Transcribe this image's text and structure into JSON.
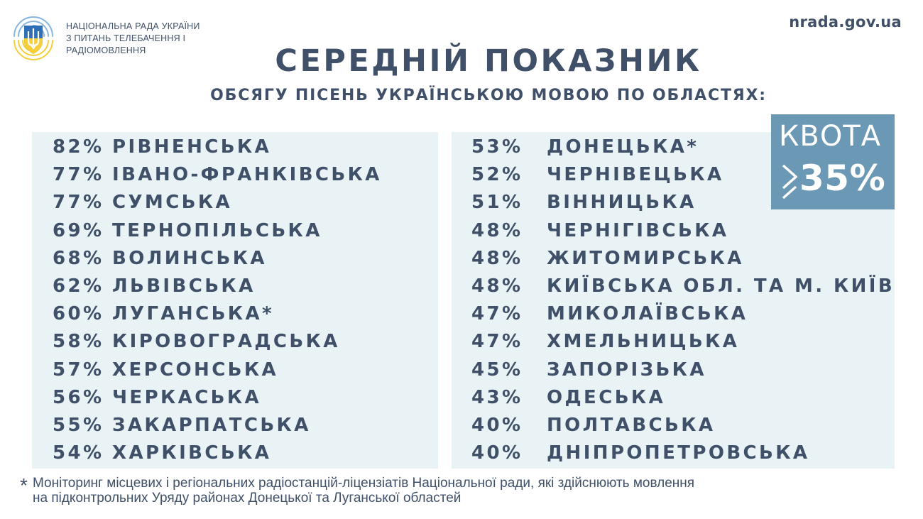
{
  "header": {
    "org_lines": [
      "НАЦІОНАЛЬНА РАДА УКРАЇНИ",
      "З ПИТАНЬ ТЕЛЕБАЧЕННЯ І",
      "РАДІОМОВЛЕННЯ"
    ],
    "website": "nrada.gov.ua"
  },
  "title": "СЕРЕДНІЙ ПОКАЗНИК",
  "subtitle": "ОБСЯГУ ПІСЕНЬ УКРАЇНСЬКОЮ МОВОЮ ПО ОБЛАСТЯХ:",
  "quota": {
    "word": "КВОТА",
    "value": "35%"
  },
  "left_column": [
    {
      "percent": "82%",
      "region": "РІВНЕНСЬКА"
    },
    {
      "percent": "77%",
      "region": "ІВАНО-ФРАНКІВСЬКА"
    },
    {
      "percent": "77%",
      "region": "СУМСЬКА"
    },
    {
      "percent": "69%",
      "region": "ТЕРНОПІЛЬСЬКА"
    },
    {
      "percent": "68%",
      "region": "ВОЛИНСЬКА"
    },
    {
      "percent": "62%",
      "region": "ЛЬВІВСЬКА"
    },
    {
      "percent": "60%",
      "region": "ЛУГАНСЬКА*"
    },
    {
      "percent": "58%",
      "region": "КІРОВОГРАДСЬКА"
    },
    {
      "percent": "57%",
      "region": "ХЕРСОНСЬКА"
    },
    {
      "percent": "56%",
      "region": "ЧЕРКАСЬКА"
    },
    {
      "percent": "55%",
      "region": "ЗАКАРПАТСЬКА"
    },
    {
      "percent": "54%",
      "region": "ХАРКІВСЬКА"
    }
  ],
  "right_column": [
    {
      "percent": "53%",
      "region": "ДОНЕЦЬКА*"
    },
    {
      "percent": "52%",
      "region": "ЧЕРНІВЕЦЬКА"
    },
    {
      "percent": "51%",
      "region": "ВІННИЦЬКА"
    },
    {
      "percent": "48%",
      "region": "ЧЕРНІГІВСЬКА"
    },
    {
      "percent": "48%",
      "region": "ЖИТОМИРСЬКА"
    },
    {
      "percent": "48%",
      "region": "КИЇВСЬКА ОБЛ. ТА М. КИЇВ"
    },
    {
      "percent": "47%",
      "region": "МИКОЛАЇВСЬКА"
    },
    {
      "percent": "47%",
      "region": "ХМЕЛЬНИЦЬКА"
    },
    {
      "percent": "45%",
      "region": "ЗАПОРІЗЬКА"
    },
    {
      "percent": "43%",
      "region": "ОДЕСЬКА"
    },
    {
      "percent": "40%",
      "region": "ПОЛТАВСЬКА"
    },
    {
      "percent": "40%",
      "region": "ДНІПРОПЕТРОВСЬКА"
    }
  ],
  "footnote": {
    "marker": "*",
    "lines": [
      "Моніторинг місцевих і регіональних радіостанцій-ліцензіатів Національної ради, які здійснюють мовлення",
      "на підконтрольних Уряду районах Донецької та Луганської областей"
    ]
  },
  "colors": {
    "text": "#3f5068",
    "panel_background": "#e9f2f5",
    "quota_background": "#6b98b4",
    "logo_blue": "#2f6fb8",
    "logo_yellow": "#f5cf3a"
  }
}
